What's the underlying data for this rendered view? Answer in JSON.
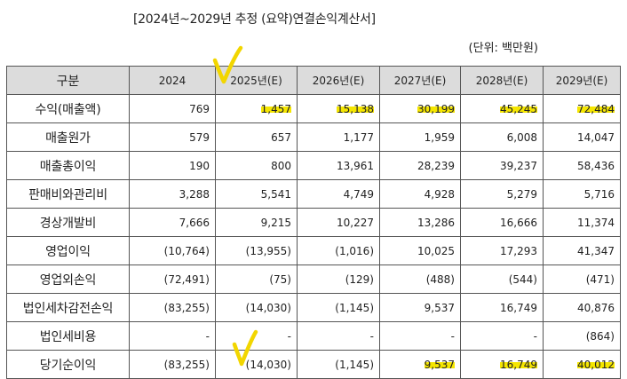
{
  "document": {
    "title": "[2024년~2029년 추정 (요약)연결손익계산서]",
    "unit": "(단위: 백만원)"
  },
  "table": {
    "headers": [
      "구분",
      "2024",
      "2025년(E)",
      "2026년(E)",
      "2027년(E)",
      "2028년(E)",
      "2029년(E)"
    ],
    "rows": [
      {
        "label": "수익(매출액)",
        "values": [
          "769",
          "1,457",
          "15,138",
          "30,199",
          "45,245",
          "72,484"
        ]
      },
      {
        "label": "매출원가",
        "values": [
          "579",
          "657",
          "1,177",
          "1,959",
          "6,008",
          "14,047"
        ]
      },
      {
        "label": "매출총이익",
        "values": [
          "190",
          "800",
          "13,961",
          "28,239",
          "39,237",
          "58,436"
        ]
      },
      {
        "label": "판매비와관리비",
        "values": [
          "3,288",
          "5,541",
          "4,749",
          "4,928",
          "5,279",
          "5,716"
        ]
      },
      {
        "label": "경상개발비",
        "values": [
          "7,666",
          "9,215",
          "10,227",
          "13,286",
          "16,666",
          "11,374"
        ]
      },
      {
        "label": "영업이익",
        "values": [
          "(10,764)",
          "(13,955)",
          "(1,016)",
          "10,025",
          "17,293",
          "41,347"
        ]
      },
      {
        "label": "영업외손익",
        "values": [
          "(72,491)",
          "(75)",
          "(129)",
          "(488)",
          "(544)",
          "(471)"
        ]
      },
      {
        "label": "법인세차감전손익",
        "values": [
          "(83,255)",
          "(14,030)",
          "(1,145)",
          "9,537",
          "16,749",
          "40,876"
        ]
      },
      {
        "label": "법인세비용",
        "values": [
          "-",
          "-",
          "-",
          "-",
          "-",
          "(864)"
        ]
      },
      {
        "label": "당기순이익",
        "values": [
          "(83,255)",
          "(14,030)",
          "(1,145)",
          "9,537",
          "16,749",
          "40,012"
        ]
      }
    ]
  },
  "annotations": {
    "highlight_color": "#f5e600",
    "check_icon": "checkmark-icon"
  }
}
